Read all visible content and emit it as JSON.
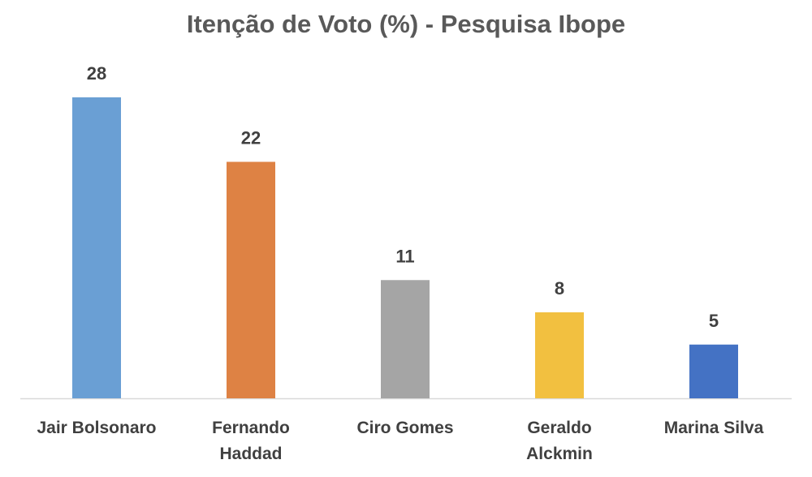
{
  "chart_data": {
    "type": "bar",
    "title": "Itenção de Voto (%) - Pesquisa Ibope",
    "xlabel": "",
    "ylabel": "",
    "ylim": [
      0,
      28
    ],
    "grid": false,
    "legend": "none",
    "data_labels": true,
    "categories": [
      [
        "Jair Bolsonaro"
      ],
      [
        "Fernando",
        "Haddad"
      ],
      [
        "Ciro Gomes"
      ],
      [
        "Geraldo",
        "Alckmin"
      ],
      [
        "Marina Silva"
      ]
    ],
    "values": [
      28,
      22,
      11,
      8,
      5
    ],
    "colors": [
      "#6A9FD4",
      "#DE8244",
      "#A5A5A5",
      "#F2C040",
      "#4472C4"
    ],
    "baseline_color": "#D9D9D9"
  }
}
